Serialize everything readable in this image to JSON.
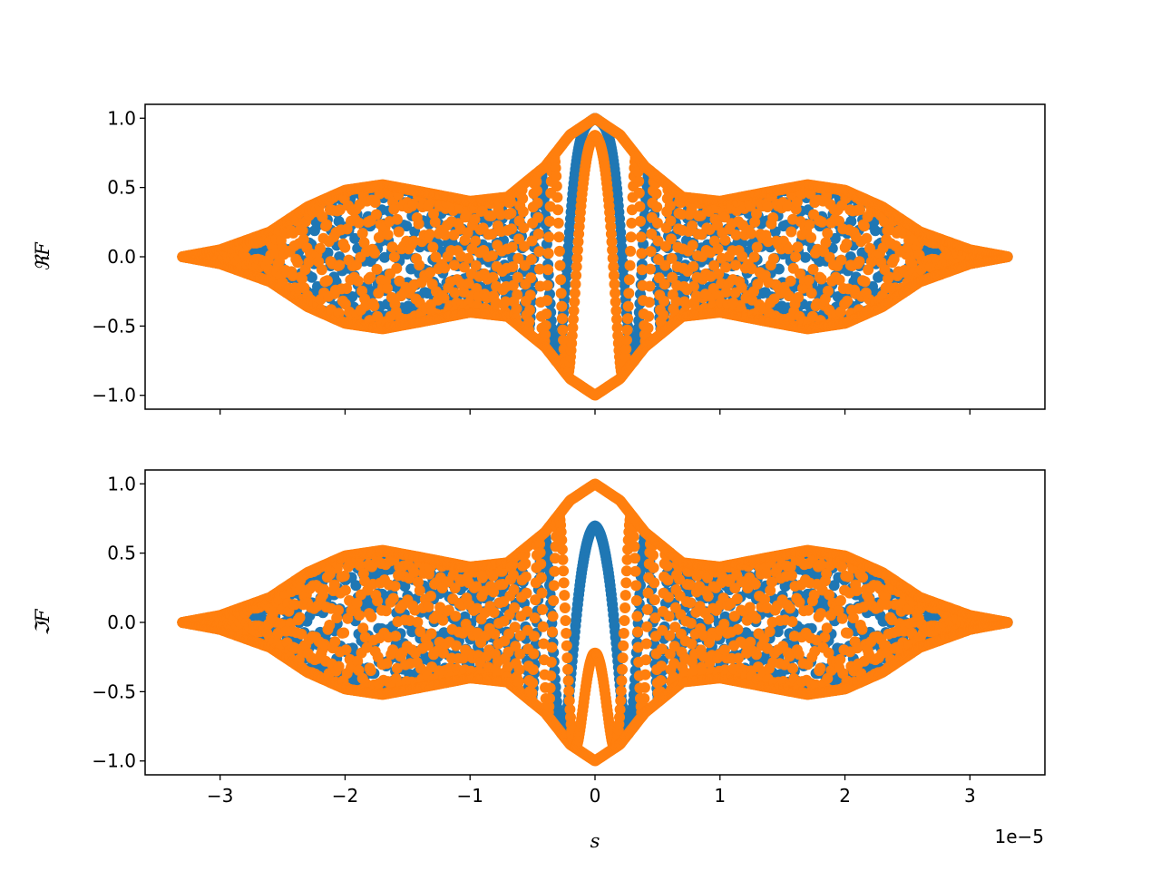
{
  "figure": {
    "shared_x_offset": "1e−5",
    "xlabel": "s"
  },
  "chart_data": [
    {
      "type": "scatter",
      "ylabel": "ℜF",
      "xlim": [
        -3.6,
        3.6
      ],
      "ylim": [
        -1.1,
        1.1
      ],
      "x_ticks": [
        -3,
        -2,
        -1,
        0,
        1,
        2,
        3
      ],
      "x_tick_labels_visible": false,
      "y_ticks": [
        -1.0,
        -0.5,
        0.0,
        0.5,
        1.0
      ],
      "y_tick_labels": [
        "−1.0",
        "−0.5",
        "0.0",
        "0.5",
        "1.0"
      ],
      "grid": false,
      "x_range_of_points": [
        -3.3,
        3.3
      ],
      "envelope": {
        "x": [
          -3.3,
          -3.0,
          -2.6,
          -2.3,
          -2.0,
          -1.7,
          -1.4,
          -1.0,
          -0.7,
          -0.4,
          -0.2,
          0.0,
          0.2,
          0.4,
          0.7,
          1.0,
          1.4,
          1.7,
          2.0,
          2.3,
          2.6,
          3.0,
          3.3
        ],
        "amplitude": [
          0.0,
          0.05,
          0.18,
          0.36,
          0.48,
          0.52,
          0.47,
          0.4,
          0.43,
          0.65,
          0.88,
          1.0,
          0.88,
          0.65,
          0.43,
          0.4,
          0.47,
          0.52,
          0.48,
          0.36,
          0.18,
          0.05,
          0.0
        ]
      },
      "series": [
        {
          "color": "#1f77b4",
          "marker": "circle"
        },
        {
          "color": "#ff7f0e",
          "marker": "circle"
        }
      ]
    },
    {
      "type": "scatter",
      "ylabel": "ℑF",
      "xlim": [
        -3.6,
        3.6
      ],
      "ylim": [
        -1.1,
        1.1
      ],
      "x_ticks": [
        -3,
        -2,
        -1,
        0,
        1,
        2,
        3
      ],
      "x_tick_labels": [
        "−3",
        "−2",
        "−1",
        "0",
        "1",
        "2",
        "3"
      ],
      "y_ticks": [
        -1.0,
        -0.5,
        0.0,
        0.5,
        1.0
      ],
      "y_tick_labels": [
        "−1.0",
        "−0.5",
        "0.0",
        "0.5",
        "1.0"
      ],
      "grid": false,
      "x_range_of_points": [
        -3.3,
        3.3
      ],
      "envelope": {
        "x": [
          -3.3,
          -3.0,
          -2.6,
          -2.3,
          -2.0,
          -1.7,
          -1.4,
          -1.0,
          -0.7,
          -0.4,
          -0.2,
          0.0,
          0.2,
          0.4,
          0.7,
          1.0,
          1.4,
          1.7,
          2.0,
          2.3,
          2.6,
          3.0,
          3.3
        ],
        "amplitude": [
          0.0,
          0.05,
          0.18,
          0.36,
          0.48,
          0.52,
          0.47,
          0.4,
          0.43,
          0.65,
          0.88,
          1.0,
          0.88,
          0.65,
          0.43,
          0.4,
          0.47,
          0.52,
          0.48,
          0.36,
          0.18,
          0.05,
          0.0
        ]
      },
      "series": [
        {
          "color": "#1f77b4",
          "marker": "circle"
        },
        {
          "color": "#ff7f0e",
          "marker": "circle"
        }
      ]
    }
  ]
}
